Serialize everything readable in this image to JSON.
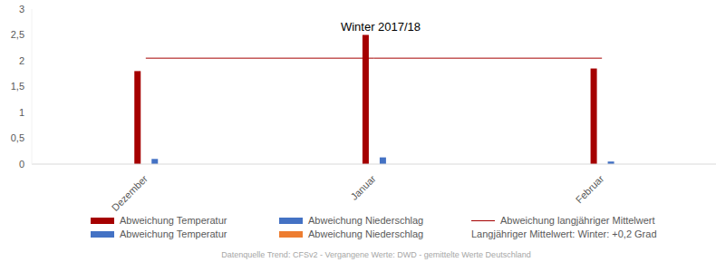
{
  "chart_data": {
    "type": "bar",
    "title": "Winter 2017/18",
    "categories": [
      "Dezember",
      "Januar",
      "Februar"
    ],
    "series": [
      {
        "name": "Abweichung Temperatur",
        "color": "#a50000",
        "type": "bar",
        "values": [
          1.8,
          2.5,
          1.85
        ]
      },
      {
        "name": "Abweichung Niederschlag",
        "color": "#4472c4",
        "type": "bar",
        "values": [
          0.1,
          0.13,
          0.05
        ]
      },
      {
        "name": "Abweichung langjähriger Mittelwert",
        "color": "#a50000",
        "type": "line",
        "values": [
          2.05,
          2.05,
          2.05
        ]
      },
      {
        "name": "Abweichung Temperatur",
        "color": "#4472c4",
        "type": "bar",
        "values": [
          null,
          null,
          null
        ]
      },
      {
        "name": "Abweichung Niederschlag",
        "color": "#ed7d31",
        "type": "bar",
        "values": [
          null,
          null,
          null
        ]
      }
    ],
    "ylim": [
      0,
      3
    ],
    "yticks": [
      0,
      {
        "value": 0.5,
        "label": "0,5"
      },
      1,
      {
        "value": 1.5,
        "label": "1,5"
      },
      2,
      {
        "value": 2.5,
        "label": "2,5"
      },
      3
    ],
    "grid": false,
    "legend_text": "Langjähriger Mittelwert: Winter: +0,2 Grad",
    "source": "Datenquelle Trend: CFSv2 - Vergangene Werte: DWD - gemittelte Werte Deutschland"
  }
}
